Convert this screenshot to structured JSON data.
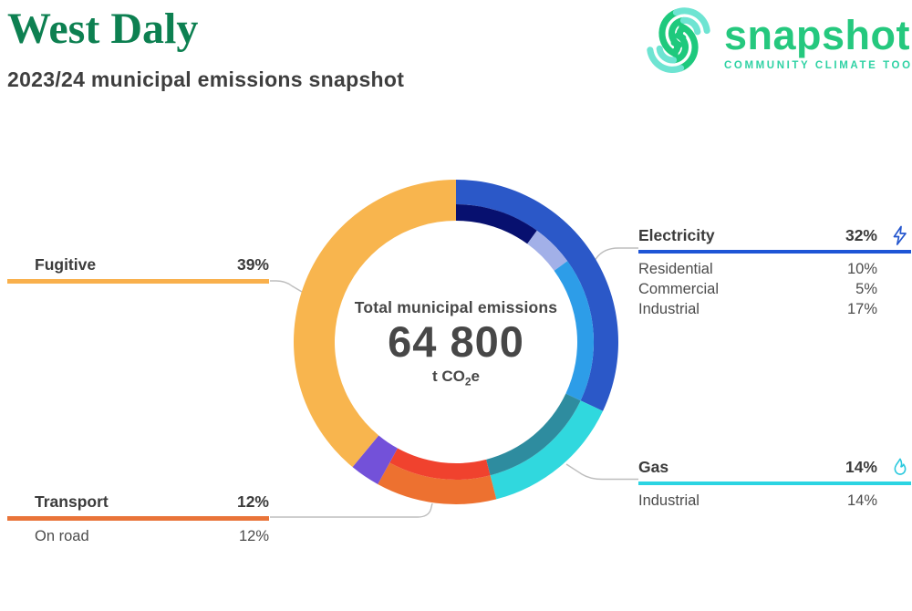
{
  "header": {
    "title": "West Daly",
    "subtitle": "2023/24 municipal emissions snapshot"
  },
  "logo": {
    "wordmark": "snapshot",
    "tagline": "COMMUNITY CLIMATE TOOL"
  },
  "center": {
    "label": "Total municipal emissions",
    "value": "64 800",
    "unit_prefix": "t CO",
    "unit_sub": "2",
    "unit_suffix": "e"
  },
  "labels": {
    "fugitive": {
      "name": "Fugitive",
      "pct": "39%"
    },
    "electricity": {
      "name": "Electricity",
      "pct": "32%",
      "rows": [
        {
          "label": "Residential",
          "value": "10%"
        },
        {
          "label": "Commercial",
          "value": "5%"
        },
        {
          "label": "Industrial",
          "value": "17%"
        }
      ]
    },
    "gas": {
      "name": "Gas",
      "pct": "14%",
      "rows": [
        {
          "label": "Industrial",
          "value": "14%"
        }
      ]
    },
    "transport": {
      "name": "Transport",
      "pct": "12%",
      "rows": [
        {
          "label": "On road",
          "value": "12%"
        }
      ]
    }
  },
  "colors": {
    "title_green": "#0d8051",
    "logo_green": "#25c87e",
    "logo_teal": "#2fd2a4",
    "fugitive_accent": "#f9b04c",
    "electricity_accent": "#1e55d6",
    "gas_accent": "#2bd4e2",
    "transport_accent": "#e97439"
  },
  "chart_data": {
    "type": "pie",
    "subtype": "two-ring-donut",
    "title": "Total municipal emissions",
    "total_label": "64 800",
    "total_value": 64800,
    "unit": "t CO2e",
    "start_angle_deg": 0,
    "direction": "clockwise",
    "segments": [
      {
        "label": "Electricity",
        "pct": 32,
        "color": "#2b58c8",
        "subs": [
          {
            "label": "Residential",
            "pct": 10,
            "color": "#07106f"
          },
          {
            "label": "Commercial",
            "pct": 5,
            "color": "#a2b0e8"
          },
          {
            "label": "Industrial",
            "pct": 17,
            "color": "#2d9de8"
          }
        ]
      },
      {
        "label": "Gas",
        "pct": 14,
        "color": "#30d8de",
        "subs": [
          {
            "label": "Industrial",
            "pct": 14,
            "color": "#2e8c9f"
          }
        ]
      },
      {
        "label": "Transport",
        "pct": 12,
        "color": "#ed7130",
        "subs": [
          {
            "label": "On road",
            "pct": 12,
            "color": "#f0422e"
          }
        ]
      },
      {
        "label": "",
        "pct": 3,
        "color": "#7351d9",
        "subs": []
      },
      {
        "label": "Fugitive",
        "pct": 39,
        "color": "#f8b54e",
        "subs": []
      }
    ]
  }
}
